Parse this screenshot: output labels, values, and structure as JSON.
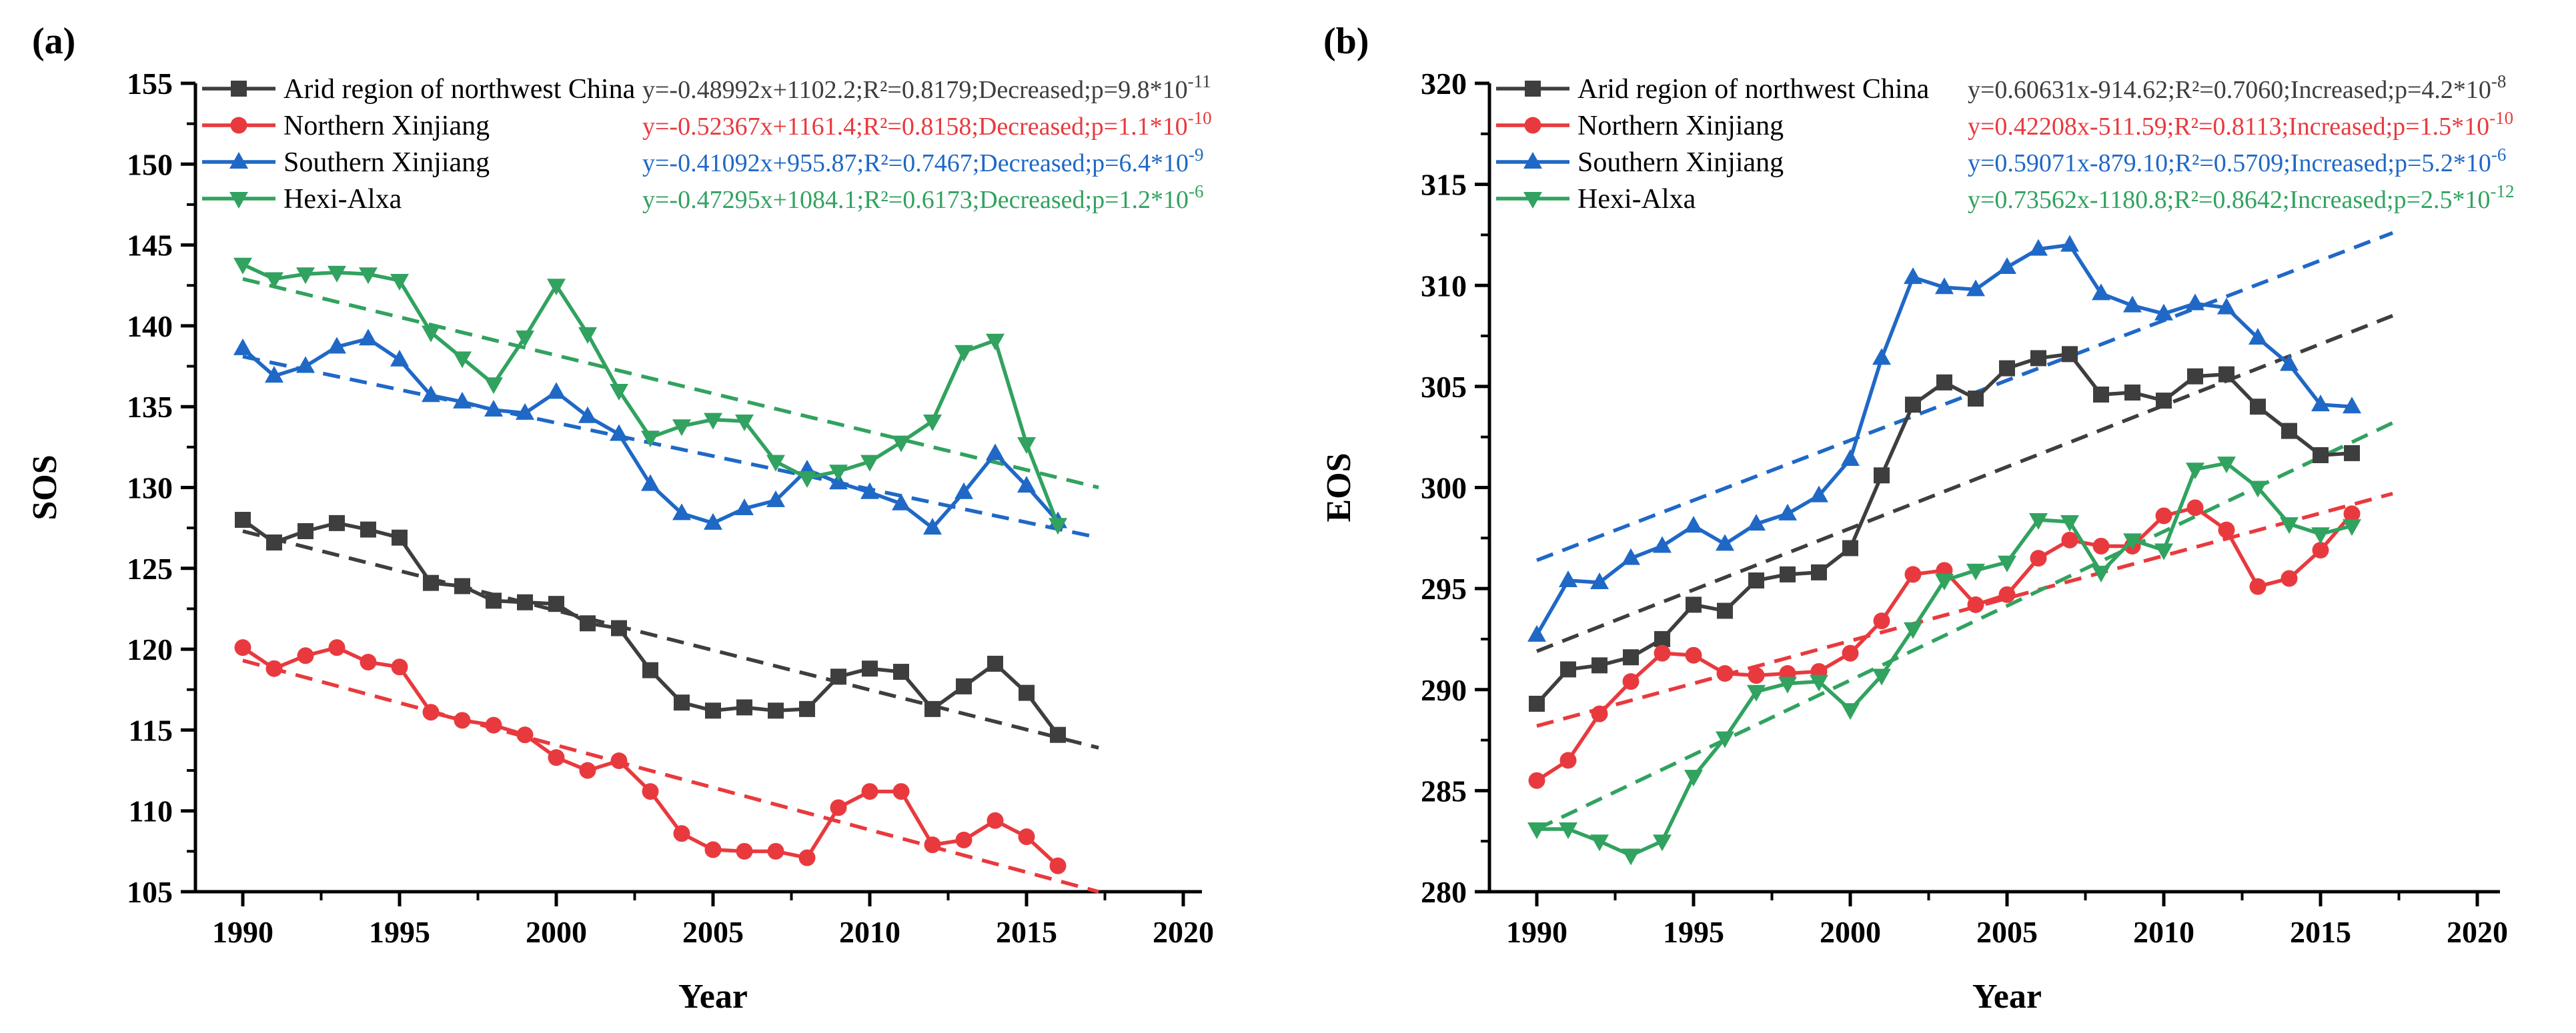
{
  "figure": {
    "background": "#ffffff",
    "axis_color": "#000000",
    "panel_labels": [
      "(a)",
      "(b)"
    ]
  },
  "chart_data": [
    {
      "type": "line",
      "panel_label": "(a)",
      "ylabel": "SOS",
      "xlabel": "Year",
      "ylim": [
        105,
        155
      ],
      "ytick_step": 5,
      "ytick_minor_step": 2.5,
      "xticks": [
        1990,
        1995,
        2000,
        2005,
        2010,
        2015,
        2020
      ],
      "xlim_years": [
        1990,
        2020
      ],
      "grid": false,
      "legend_position": "top-left-inside",
      "years": [
        1990,
        1991,
        1992,
        1993,
        1994,
        1995,
        1996,
        1997,
        1998,
        1999,
        2000,
        2001,
        2002,
        2003,
        2004,
        2005,
        2006,
        2007,
        2008,
        2009,
        2010,
        2011,
        2012,
        2013,
        2014,
        2015,
        2016
      ],
      "series": [
        {
          "name": "Arid region of northwest China",
          "color": "#3e3e3e",
          "marker": "square",
          "values": [
            128.0,
            126.6,
            127.3,
            127.8,
            127.4,
            126.9,
            124.1,
            123.9,
            123.0,
            122.9,
            122.8,
            121.6,
            121.3,
            118.7,
            116.7,
            116.2,
            116.4,
            116.2,
            116.3,
            118.3,
            118.8,
            118.6,
            116.3,
            117.7,
            119.1,
            117.3,
            114.7
          ],
          "trend": {
            "start_year": 1990,
            "end_year": 2017.3,
            "start_value": 127.3,
            "end_value": 113.9
          },
          "equation": {
            "body": "y=-0.48992x+1102.2;R²=0.8179;Decreased;p=9.8*10",
            "exp": "-11"
          }
        },
        {
          "name": "Northern Xinjiang",
          "color": "#e83a3e",
          "marker": "circle",
          "values": [
            120.1,
            118.8,
            119.6,
            120.1,
            119.2,
            118.9,
            116.1,
            115.6,
            115.3,
            114.7,
            113.3,
            112.5,
            113.1,
            111.2,
            108.6,
            107.6,
            107.5,
            107.5,
            107.1,
            110.2,
            111.2,
            111.2,
            107.9,
            108.2,
            109.4,
            108.4,
            106.6
          ],
          "trend": {
            "start_year": 1990,
            "end_year": 2017.3,
            "start_value": 119.3,
            "end_value": 105.0
          },
          "equation": {
            "body": "y=-0.52367x+1161.4;R²=0.8158;Decreased;p=1.1*10",
            "exp": "-10"
          }
        },
        {
          "name": "Southern Xinjiang",
          "color": "#1f68c6",
          "marker": "triangle-up",
          "values": [
            138.6,
            136.9,
            137.5,
            138.7,
            139.2,
            137.9,
            135.7,
            135.3,
            134.8,
            134.6,
            135.9,
            134.4,
            133.3,
            130.2,
            128.4,
            127.8,
            128.7,
            129.2,
            131.1,
            130.3,
            129.7,
            129.0,
            127.5,
            129.7,
            132.1,
            130.1,
            127.9
          ],
          "trend": {
            "start_year": 1990,
            "end_year": 2017.3,
            "start_value": 138.1,
            "end_value": 126.9
          },
          "equation": {
            "body": "y=-0.41092x+955.87;R²=0.7467;Decreased;p=6.4*10",
            "exp": "-9"
          }
        },
        {
          "name": "Hexi-Alxa",
          "color": "#31a25f",
          "marker": "triangle-down",
          "values": [
            143.8,
            142.9,
            143.2,
            143.3,
            143.2,
            142.8,
            139.6,
            138.0,
            136.4,
            139.3,
            142.5,
            139.5,
            136.0,
            133.1,
            133.8,
            134.2,
            134.1,
            131.6,
            130.6,
            131.0,
            131.6,
            132.8,
            134.1,
            138.4,
            139.1,
            132.7,
            127.7
          ],
          "trend": {
            "start_year": 1990,
            "end_year": 2017.3,
            "start_value": 142.9,
            "end_value": 130.0
          },
          "equation": {
            "body": "y=-0.47295x+1084.1;R²=0.6173;Decreased;p=1.2*10",
            "exp": "-6"
          }
        }
      ]
    },
    {
      "type": "line",
      "panel_label": "(b)",
      "ylabel": "EOS",
      "xlabel": "Year",
      "ylim": [
        280,
        320
      ],
      "ytick_step": 5,
      "ytick_minor_step": 2.5,
      "xticks": [
        1990,
        1995,
        2000,
        2005,
        2010,
        2015,
        2020
      ],
      "xlim_years": [
        1990,
        2020
      ],
      "grid": false,
      "legend_position": "top-left-inside",
      "years": [
        1990,
        1991,
        1992,
        1993,
        1994,
        1995,
        1996,
        1997,
        1998,
        1999,
        2000,
        2001,
        2002,
        2003,
        2004,
        2005,
        2006,
        2007,
        2008,
        2009,
        2010,
        2011,
        2012,
        2013,
        2014,
        2015,
        2016
      ],
      "series": [
        {
          "name": "Arid region of northwest China",
          "color": "#3e3e3e",
          "marker": "square",
          "values": [
            289.3,
            291.0,
            291.2,
            291.6,
            292.5,
            294.2,
            293.9,
            295.4,
            295.7,
            295.8,
            297.0,
            300.6,
            304.1,
            305.2,
            304.4,
            305.9,
            306.4,
            306.6,
            304.6,
            304.7,
            304.3,
            305.5,
            305.6,
            304.0,
            302.8,
            301.6,
            301.7
          ],
          "trend": {
            "start_year": 1990,
            "end_year": 2017.3,
            "start_value": 291.9,
            "end_value": 308.5
          },
          "equation": {
            "body": "y=0.60631x-914.62;R²=0.7060;Increased;p=4.2*10",
            "exp": "-8"
          }
        },
        {
          "name": "Northern Xinjiang",
          "color": "#e83a3e",
          "marker": "circle",
          "values": [
            285.5,
            286.5,
            288.8,
            290.4,
            291.8,
            291.7,
            290.8,
            290.7,
            290.8,
            290.9,
            291.8,
            293.4,
            295.7,
            295.9,
            294.2,
            294.7,
            296.5,
            297.4,
            297.1,
            297.1,
            298.6,
            299.0,
            297.9,
            295.1,
            295.5,
            296.9,
            298.7
          ],
          "trend": {
            "start_year": 1990,
            "end_year": 2017.3,
            "start_value": 288.2,
            "end_value": 299.7
          },
          "equation": {
            "body": "y=0.42208x-511.59;R²=0.8113;Increased;p=1.5*10",
            "exp": "-10"
          }
        },
        {
          "name": "Southern Xinjiang",
          "color": "#1f68c6",
          "marker": "triangle-up",
          "values": [
            292.7,
            295.4,
            295.3,
            296.5,
            297.1,
            298.1,
            297.2,
            298.2,
            298.7,
            299.6,
            301.4,
            306.4,
            310.4,
            309.9,
            309.8,
            310.9,
            311.8,
            312.0,
            309.6,
            309.0,
            308.6,
            309.1,
            308.9,
            307.4,
            306.1,
            304.1,
            304.0
          ],
          "trend": {
            "start_year": 1990,
            "end_year": 2017.3,
            "start_value": 296.4,
            "end_value": 312.6
          },
          "equation": {
            "body": "y=0.59071x-879.10;R²=0.5709;Increased;p=5.2*10",
            "exp": "-6"
          }
        },
        {
          "name": "Hexi-Alxa",
          "color": "#31a25f",
          "marker": "triangle-down",
          "values": [
            283.1,
            283.1,
            282.5,
            281.8,
            282.5,
            285.7,
            287.6,
            289.9,
            290.3,
            290.4,
            289.0,
            290.7,
            293.0,
            295.4,
            295.9,
            296.3,
            298.4,
            298.3,
            295.8,
            297.4,
            296.9,
            300.9,
            301.2,
            300.0,
            298.2,
            297.7,
            298.1
          ],
          "trend": {
            "start_year": 1990,
            "end_year": 2017.3,
            "start_value": 283.1,
            "end_value": 303.2
          },
          "equation": {
            "body": "y=0.73562x-1180.8;R²=0.8642;Increased;p=2.5*10",
            "exp": "-12"
          }
        }
      ]
    }
  ]
}
